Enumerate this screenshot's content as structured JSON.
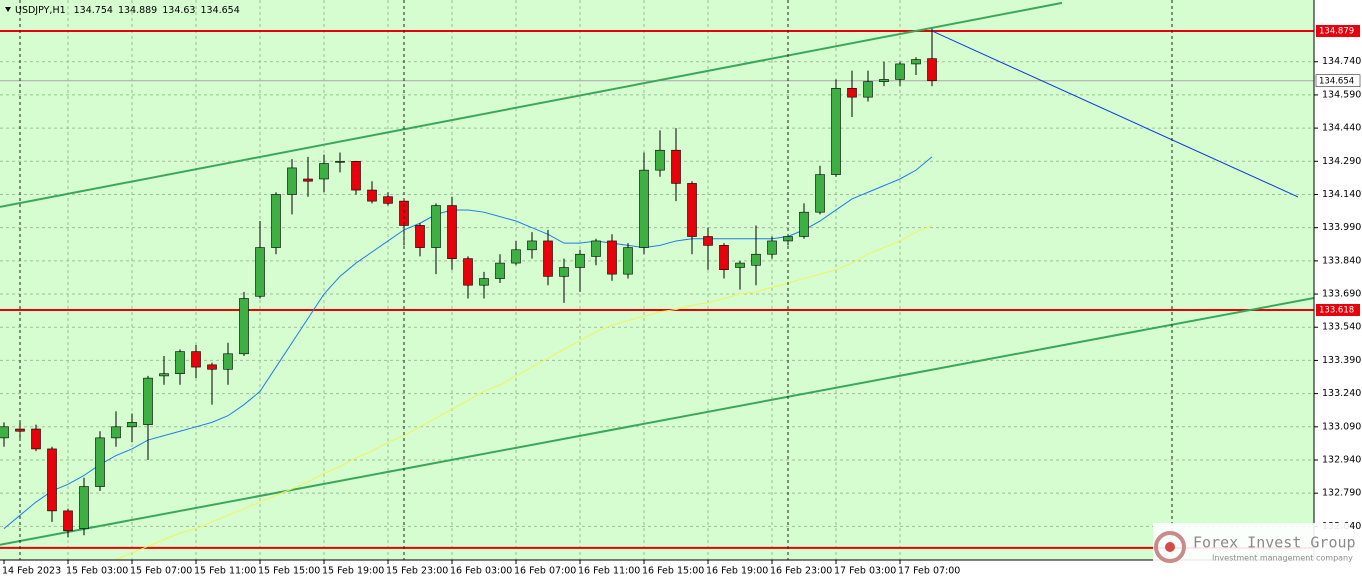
{
  "chart_data": {
    "type": "candlestick",
    "symbol": "USDJPY,H1",
    "categories": [
      "14 Feb 2023",
      null,
      null,
      null,
      "15 Feb 03:00",
      null,
      null,
      null,
      "15 Feb 07:00",
      null,
      null,
      null,
      "15 Feb 11:00",
      null,
      null,
      null,
      "15 Feb 15:00",
      null,
      null,
      null,
      "15 Feb 19:00",
      null,
      null,
      null,
      "15 Feb 23:00",
      null,
      null,
      null,
      "16 Feb 03:00",
      null,
      null,
      null,
      "16 Feb 07:00",
      null,
      null,
      null,
      "16 Feb 11:00",
      null,
      null,
      null,
      "16 Feb 15:00",
      null,
      null,
      null,
      "16 Feb 19:00",
      null,
      null,
      null,
      "16 Feb 23:00",
      null,
      null,
      null,
      "17 Feb 03:00",
      null,
      null,
      null,
      "17 Feb 07:00",
      null,
      null
    ],
    "open": [
      133.04,
      133.08,
      133.08,
      132.99,
      132.71,
      132.63,
      132.82,
      133.04,
      133.09,
      133.1,
      133.32,
      133.33,
      133.43,
      133.37,
      133.35,
      133.42,
      133.68,
      133.9,
      134.14,
      134.21,
      134.21,
      134.29,
      134.29,
      134.16,
      134.13,
      134.11,
      134.0,
      133.9,
      134.09,
      133.85,
      133.73,
      133.76,
      133.83,
      133.89,
      133.93,
      133.77,
      133.81,
      133.86,
      133.93,
      133.78,
      133.9,
      134.25,
      134.34,
      134.19,
      133.95,
      133.91,
      133.81,
      133.82,
      133.87,
      133.93,
      133.95,
      134.06,
      134.23,
      134.62,
      134.58,
      134.65,
      134.66,
      134.73,
      134.754
    ],
    "high": [
      133.11,
      133.11,
      133.1,
      133.0,
      132.72,
      132.86,
      133.07,
      133.16,
      133.15,
      133.32,
      133.41,
      133.44,
      133.46,
      133.38,
      133.47,
      133.7,
      134.02,
      134.15,
      134.3,
      134.31,
      134.32,
      134.33,
      134.29,
      134.2,
      134.15,
      134.12,
      134.01,
      134.1,
      134.13,
      133.86,
      133.79,
      133.87,
      133.93,
      133.97,
      133.98,
      133.85,
      133.89,
      133.94,
      133.96,
      133.92,
      134.33,
      134.43,
      134.44,
      134.2,
      133.99,
      133.92,
      133.84,
      134.0,
      133.95,
      133.96,
      134.1,
      134.27,
      134.66,
      134.7,
      134.7,
      134.74,
      134.74,
      134.76,
      134.889
    ],
    "low": [
      133.0,
      133.04,
      132.98,
      132.66,
      132.59,
      132.6,
      132.8,
      133.0,
      133.02,
      132.94,
      133.28,
      133.28,
      133.31,
      133.19,
      133.28,
      133.41,
      133.67,
      133.87,
      134.05,
      134.13,
      134.15,
      134.24,
      134.14,
      134.1,
      134.09,
      133.91,
      133.86,
      133.78,
      133.8,
      133.67,
      133.67,
      133.74,
      133.82,
      133.85,
      133.73,
      133.65,
      133.7,
      133.82,
      133.75,
      133.76,
      133.87,
      134.22,
      134.11,
      133.87,
      133.8,
      133.76,
      133.71,
      133.73,
      133.85,
      133.91,
      133.94,
      134.05,
      134.22,
      134.49,
      134.56,
      134.63,
      134.63,
      134.68,
      134.63
    ],
    "close": [
      133.09,
      133.07,
      132.99,
      132.71,
      132.62,
      132.82,
      133.04,
      133.09,
      133.11,
      133.31,
      133.33,
      133.43,
      133.36,
      133.35,
      133.42,
      133.67,
      133.9,
      134.14,
      134.26,
      134.2,
      134.28,
      134.29,
      134.16,
      134.11,
      134.1,
      134.0,
      133.9,
      134.09,
      133.85,
      133.73,
      133.76,
      133.83,
      133.89,
      133.93,
      133.77,
      133.81,
      133.87,
      133.93,
      133.78,
      133.9,
      134.25,
      134.34,
      134.19,
      133.95,
      133.91,
      133.8,
      133.83,
      133.87,
      133.93,
      133.95,
      134.06,
      134.23,
      134.62,
      134.58,
      134.65,
      134.66,
      134.73,
      134.75,
      134.654
    ],
    "up_color": "#3cb043",
    "down_color": "#e8000b",
    "background": "#d6fdd0",
    "grid": true,
    "ylim": [
      132.488,
      135.019
    ],
    "yticks": [
      {
        "value": 134.74,
        "label": "134.740"
      },
      {
        "value": 134.59,
        "label": "134.590"
      },
      {
        "value": 134.44,
        "label": "134.440"
      },
      {
        "value": 134.29,
        "label": "134.290"
      },
      {
        "value": 134.14,
        "label": "134.140"
      },
      {
        "value": 133.99,
        "label": "133.990"
      },
      {
        "value": 133.84,
        "label": "133.840"
      },
      {
        "value": 133.69,
        "label": "133.690"
      },
      {
        "value": 133.54,
        "label": "133.540"
      },
      {
        "value": 133.39,
        "label": "133.390"
      },
      {
        "value": 133.24,
        "label": "133.240"
      },
      {
        "value": 133.09,
        "label": "133.090"
      },
      {
        "value": 132.94,
        "label": "132.940"
      },
      {
        "value": 132.79,
        "label": "132.790"
      },
      {
        "value": 132.64,
        "label": "132.640"
      }
    ],
    "ma": [
      {
        "color": "#1e7fe0",
        "values": [
          132.63,
          132.69,
          132.75,
          132.8,
          132.83,
          132.87,
          132.92,
          132.96,
          132.99,
          133.03,
          133.05,
          133.07,
          133.09,
          133.11,
          133.14,
          133.19,
          133.25,
          133.36,
          133.47,
          133.58,
          133.69,
          133.77,
          133.83,
          133.88,
          133.93,
          133.98,
          134.01,
          134.05,
          134.07,
          134.07,
          134.06,
          134.04,
          134.02,
          133.99,
          133.96,
          133.92,
          133.92,
          133.93,
          133.92,
          133.91,
          133.9,
          133.91,
          133.93,
          133.94,
          133.94,
          133.94,
          133.94,
          133.94,
          133.94,
          133.95,
          133.98,
          134.02,
          134.07,
          134.12,
          134.15,
          134.18,
          134.21,
          134.25,
          134.31
        ]
      },
      {
        "color": "#f2f25a",
        "values": [
          null,
          null,
          null,
          null,
          null,
          null,
          null,
          132.49,
          132.52,
          132.55,
          132.58,
          132.61,
          132.63,
          132.66,
          132.69,
          132.72,
          132.75,
          132.78,
          132.81,
          132.84,
          132.88,
          132.91,
          132.95,
          132.98,
          133.02,
          133.05,
          133.09,
          133.13,
          133.17,
          133.21,
          133.25,
          133.28,
          133.32,
          133.36,
          133.4,
          133.44,
          133.48,
          133.52,
          133.55,
          133.57,
          133.59,
          133.61,
          133.62,
          133.64,
          133.65,
          133.67,
          133.69,
          133.7,
          133.72,
          133.74,
          133.76,
          133.78,
          133.8,
          133.83,
          133.87,
          133.9,
          133.93,
          133.97,
          134.0
        ]
      }
    ],
    "levels": [
      {
        "value": 134.879,
        "color": "#e8000b",
        "labeled": true
      },
      {
        "value": 133.618,
        "color": "#e8000b",
        "labeled": true
      },
      {
        "value": 132.543,
        "color": "#e8000b",
        "labeled": false
      }
    ],
    "trendlines": [
      {
        "color": "#3aa85a",
        "x": [
          -0.25,
          66.125
        ],
        "y": [
          134.084,
          135.006
        ]
      },
      {
        "color": "#3aa85a",
        "x": [
          -0.25,
          81.875
        ],
        "y": [
          132.557,
          133.672
        ]
      },
      {
        "color": "#0a3fd6",
        "x": [
          58,
          80.875
        ],
        "y": [
          134.879,
          134.129
        ]
      }
    ],
    "watermark": {
      "title": "Forex Invest Group OU",
      "subtitle": "Investment management company"
    }
  }
}
